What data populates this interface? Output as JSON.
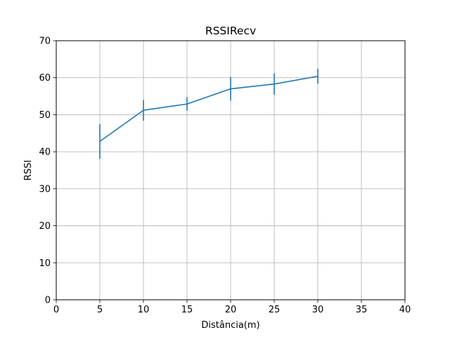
{
  "chart_data": {
    "type": "line",
    "title": "RSSIRecv",
    "xlabel": "Distância(m)",
    "ylabel": "RSSI",
    "xlim": [
      0,
      40
    ],
    "ylim": [
      0,
      70
    ],
    "xticks": [
      0,
      5,
      10,
      15,
      20,
      25,
      30,
      35,
      40
    ],
    "yticks": [
      0,
      10,
      20,
      30,
      40,
      50,
      60,
      70
    ],
    "grid": true,
    "series": [
      {
        "color": "#1f77b4",
        "x": [
          5,
          10,
          15,
          20,
          25,
          30
        ],
        "y": [
          42.8,
          51.2,
          52.9,
          57.0,
          58.3,
          60.4
        ],
        "error": [
          4.7,
          2.8,
          1.8,
          3.2,
          2.9,
          2.0
        ]
      }
    ]
  }
}
